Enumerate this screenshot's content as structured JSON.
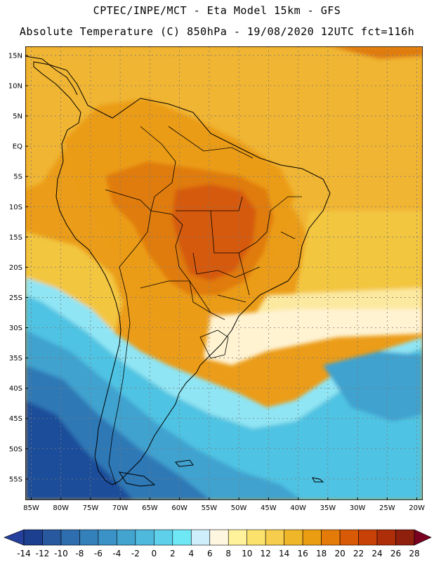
{
  "title": {
    "line1": "CPTEC/INPE/MCT -  Eta Model 15km - GFS",
    "line2": "Absolute Temperature (C) 850hPa - 19/08/2020 12UTC fct=116h"
  },
  "axes": {
    "lat_labels": [
      "15N",
      "10N",
      "5N",
      "EQ",
      "5S",
      "10S",
      "15S",
      "20S",
      "25S",
      "30S",
      "35S",
      "40S",
      "45S",
      "50S",
      "55S"
    ],
    "lon_labels": [
      "85W",
      "80W",
      "75W",
      "70W",
      "65W",
      "60W",
      "55W",
      "50W",
      "45W",
      "40W",
      "35W",
      "30W",
      "25W",
      "20W"
    ]
  },
  "colorbar": {
    "labels": [
      "-14",
      "-12",
      "-10",
      "-8",
      "-6",
      "-4",
      "-2",
      "0",
      "2",
      "4",
      "6",
      "8",
      "10",
      "12",
      "14",
      "16",
      "18",
      "20",
      "22",
      "24",
      "26",
      "28"
    ],
    "colors": [
      "#1d3f8f",
      "#28589e",
      "#2e6eae",
      "#3480bb",
      "#3a92c6",
      "#42a4cf",
      "#4fb8dd",
      "#5fd0ea",
      "#6fe8f6",
      "#cfeefb",
      "#fff6e0",
      "#fff29a",
      "#fbe26c",
      "#f6cd4c",
      "#f0b62a",
      "#eb9d12",
      "#e47a08",
      "#d95a06",
      "#c84208",
      "#ae2e0a",
      "#8f200e"
    ],
    "under_color": "#243f9c",
    "over_color": "#7a0020"
  },
  "field_colors": {
    "far_south": "#1f4d9a",
    "south_mid": "#2f78b6",
    "south_light": "#3fa2cf",
    "cyan": "#4fc3e3",
    "light_cyan": "#8fe5f4",
    "pale": "#fff3d2",
    "pale_yellow": "#fce9a0",
    "yellow": "#f3c640",
    "gold": "#f0b530",
    "orange": "#eb9c18",
    "dark_orange": "#e07c0a",
    "red_orange": "#d65a08"
  },
  "map_lines": "#000000",
  "grid_color": "#7a7a7a"
}
